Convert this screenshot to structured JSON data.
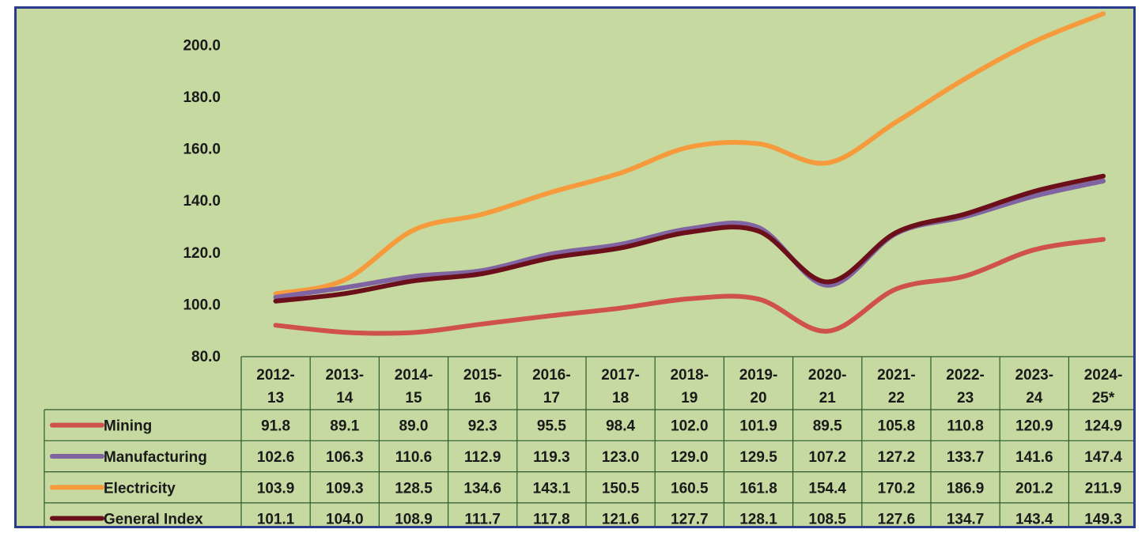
{
  "chart_data": {
    "type": "line",
    "categories": [
      "2012-13",
      "2013-14",
      "2014-15",
      "2015-16",
      "2016-17",
      "2017-18",
      "2018-19",
      "2019-20",
      "2020-21",
      "2021-22",
      "2022-23",
      "2023-24",
      "2024-25*"
    ],
    "category_lines": [
      [
        "2012-",
        "13"
      ],
      [
        "2013-",
        "14"
      ],
      [
        "2014-",
        "15"
      ],
      [
        "2015-",
        "16"
      ],
      [
        "2016-",
        "17"
      ],
      [
        "2017-",
        "18"
      ],
      [
        "2018-",
        "19"
      ],
      [
        "2019-",
        "20"
      ],
      [
        "2020-",
        "21"
      ],
      [
        "2021-",
        "22"
      ],
      [
        "2022-",
        "23"
      ],
      [
        "2023-",
        "24"
      ],
      [
        "2024-",
        "25*"
      ]
    ],
    "series": [
      {
        "name": "Mining",
        "color": "#d0504c",
        "values": [
          91.8,
          89.1,
          89.0,
          92.3,
          95.5,
          98.4,
          102.0,
          101.9,
          89.5,
          105.8,
          110.8,
          120.9,
          124.9
        ]
      },
      {
        "name": "Manufacturing",
        "color": "#8064a2",
        "values": [
          102.6,
          106.3,
          110.6,
          112.9,
          119.3,
          123.0,
          129.0,
          129.5,
          107.2,
          127.2,
          133.7,
          141.6,
          147.4
        ]
      },
      {
        "name": "Electricity",
        "color": "#f79a3c",
        "values": [
          103.9,
          109.3,
          128.5,
          134.6,
          143.1,
          150.5,
          160.5,
          161.8,
          154.4,
          170.2,
          186.9,
          201.2,
          211.9
        ]
      },
      {
        "name": "General Index",
        "color": "#6b0f1a",
        "values": [
          101.1,
          104.0,
          108.9,
          111.7,
          117.8,
          121.6,
          127.7,
          128.1,
          108.5,
          127.6,
          134.7,
          143.4,
          149.3
        ]
      }
    ],
    "y_ticks": [
      "80.0",
      "100.0",
      "120.0",
      "140.0",
      "160.0",
      "180.0",
      "200.0"
    ],
    "ylim": [
      80,
      210
    ],
    "grid": false,
    "legend": "data-table"
  }
}
